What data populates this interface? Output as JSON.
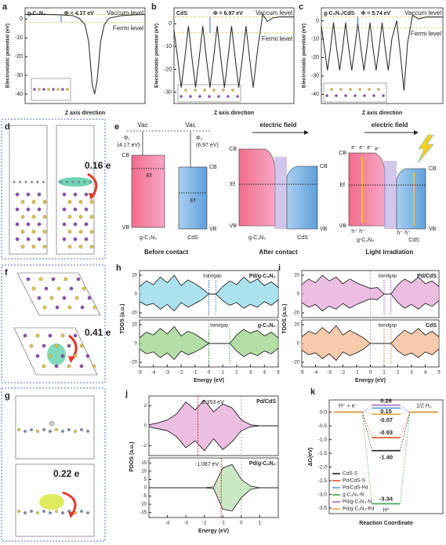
{
  "chart_data": [
    {
      "type": "line",
      "panel": "a",
      "title": "g-C₃N₄",
      "xlabel": "Z axis direction",
      "ylabel": "Electrostatic potential (eV)",
      "x": [
        0,
        0.1,
        0.2,
        0.3,
        0.4,
        0.45,
        0.5,
        0.53,
        0.56,
        0.58,
        0.6,
        0.63,
        0.66,
        0.7,
        0.8,
        0.9,
        1
      ],
      "series": [
        {
          "color": "#333333",
          "values": [
            2.5,
            2.5,
            2.4,
            2.3,
            1.8,
            0.5,
            -3,
            -12,
            -35,
            -40,
            -33,
            -12,
            -3,
            0.5,
            1.8,
            2.3,
            2.5
          ]
        }
      ],
      "xlim": [
        0,
        1
      ],
      "ylim": [
        -45,
        6
      ],
      "yticks": [
        0,
        -10,
        -20,
        -30,
        -40
      ],
      "vacuum_level": 2.5,
      "fermi_level": -1.67,
      "level_color": "#e8c860",
      "annotations": [
        "Φ = 4.17 eV",
        "Vaccum level",
        "Fermi level"
      ]
    },
    {
      "type": "line",
      "panel": "b",
      "title": "CdS",
      "xlabel": "Z axis direction",
      "ylabel": "Electrostatic potential (eV)",
      "x": [
        0,
        0.03,
        0.06,
        0.09,
        0.12,
        0.15,
        0.18,
        0.21,
        0.24,
        0.27,
        0.3,
        0.33,
        0.36,
        0.39,
        0.42,
        0.45,
        0.48,
        0.51,
        0.54,
        0.57,
        0.6,
        0.63,
        0.66,
        0.7,
        0.74,
        0.78,
        0.82,
        0.88,
        1
      ],
      "series": [
        {
          "color": "#333333",
          "values": [
            -3,
            -15,
            -28,
            -15,
            -1,
            -15,
            -28,
            -15,
            -1,
            -15,
            -28,
            -15,
            -1,
            -15,
            -28,
            -15,
            -1,
            -15,
            -28,
            -15,
            -1,
            -15,
            -28,
            -10,
            4,
            1,
            2.5,
            3,
            3
          ]
        }
      ],
      "xlim": [
        0,
        1
      ],
      "ylim": [
        -35,
        7
      ],
      "yticks": [
        0,
        -10,
        -20,
        -30
      ],
      "vacuum_level": 3,
      "fermi_level": -3.97,
      "level_color": "#e8c860",
      "annotations": [
        "Φ = 6.97 eV",
        "Vaccum level",
        "Fermi level"
      ]
    },
    {
      "type": "line",
      "panel": "c",
      "title": "g-C₃N₄/CdS",
      "xlabel": "Z axis direction",
      "ylabel": "Electrostatic potential (eV)",
      "x": [
        0,
        0.025,
        0.05,
        0.075,
        0.1,
        0.125,
        0.15,
        0.175,
        0.2,
        0.225,
        0.25,
        0.275,
        0.3,
        0.325,
        0.35,
        0.375,
        0.4,
        0.425,
        0.45,
        0.475,
        0.5,
        0.525,
        0.55,
        0.58,
        0.62,
        0.65,
        0.68,
        0.71,
        0.75,
        0.8,
        0.86,
        1
      ],
      "series": [
        {
          "color": "#333333",
          "values": [
            -3,
            -15,
            -27,
            -15,
            -1,
            -15,
            -27,
            -15,
            -1,
            -15,
            -27,
            -15,
            -1,
            -15,
            -27,
            -15,
            -1,
            -15,
            -27,
            -15,
            -1,
            -15,
            -27,
            -10,
            0,
            -18,
            -38,
            -12,
            3,
            1,
            2,
            2
          ]
        }
      ],
      "xlim": [
        0,
        1
      ],
      "ylim": [
        -45,
        7
      ],
      "yticks": [
        0,
        -10,
        -20,
        -30,
        -40
      ],
      "vacuum_level": 2,
      "fermi_level": -3.74,
      "level_color": "#e8c860",
      "annotations": [
        "Φ = 5.74 eV",
        "Vaccum level",
        "Fermi level"
      ]
    },
    {
      "type": "dos",
      "panel": "h",
      "xlabel": "Energy (eV)",
      "ylabel": "TDOS (a.u.)",
      "x": [
        -5,
        -4.5,
        -4,
        -3.5,
        -3,
        -2.5,
        -2,
        -1.5,
        -1,
        -0.5,
        0,
        0.5,
        1,
        1.5,
        2,
        2.5,
        3,
        3.5,
        4,
        4.5,
        5
      ],
      "xlim": [
        -5,
        5
      ],
      "xticks": [
        -5,
        -4,
        -3,
        -2,
        -1,
        0,
        1,
        2,
        3,
        4,
        5
      ],
      "subplots": [
        {
          "title": "Pd/g-C₃N₄",
          "annotation": "bandgap",
          "gap": [
            0,
            0.5
          ],
          "color": "#8fd8e8",
          "gap_color": "#3a7bd5",
          "ylim": [
            -25,
            25
          ],
          "yticks": [
            -20,
            0,
            20
          ],
          "series": [
            {
              "values": [
                8,
                14,
                10,
                18,
                12,
                20,
                9,
                15,
                11,
                6,
                0,
                0,
                8,
                14,
                10,
                18,
                12,
                16,
                9,
                13,
                7
              ]
            },
            {
              "values": [
                -8,
                -12,
                -10,
                -16,
                -11,
                -18,
                -9,
                -14,
                -10,
                -6,
                0,
                0,
                -7,
                -12,
                -9,
                -15,
                -11,
                -14,
                -8,
                -12,
                -6
              ]
            }
          ]
        },
        {
          "title": "g-C₃N₄",
          "annotation": "bandgap",
          "gap": [
            0,
            1.5
          ],
          "color": "#9ad48a",
          "gap_color": "#2e9e3e",
          "ylim": [
            -25,
            25
          ],
          "yticks": [
            -20,
            0,
            20
          ],
          "series": [
            {
              "values": [
                6,
                12,
                9,
                16,
                10,
                18,
                8,
                13,
                10,
                5,
                0,
                0,
                0,
                0,
                9,
                15,
                11,
                14,
                8,
                12,
                6
              ]
            },
            {
              "values": [
                -6,
                -11,
                -9,
                -15,
                -10,
                -17,
                -8,
                -12,
                -9,
                -5,
                0,
                0,
                0,
                0,
                -8,
                -14,
                -10,
                -13,
                -8,
                -11,
                -5
              ]
            }
          ]
        }
      ]
    },
    {
      "type": "dos",
      "panel": "i",
      "xlabel": "Energy (eV)",
      "ylabel": "TDOS (a.u.)",
      "x": [
        -5,
        -4.5,
        -4,
        -3.5,
        -3,
        -2.5,
        -2,
        -1.5,
        -1,
        -0.5,
        0,
        0.5,
        1,
        1.5,
        2,
        2.5,
        3,
        3.5,
        4,
        4.5,
        5
      ],
      "xlim": [
        -5,
        5
      ],
      "xticks": [
        -5,
        -4,
        -3,
        -2,
        -1,
        0,
        1,
        2,
        3,
        4,
        5
      ],
      "subplots": [
        {
          "title": "Pd/CdS",
          "annotation": "bandgap",
          "gap": [
            1,
            1.5
          ],
          "color": "#e4a8d8",
          "gap_color": "#9b3fc0",
          "ylim": [
            -25,
            25
          ],
          "yticks": [
            -20,
            0,
            20
          ],
          "series": [
            {
              "values": [
                10,
                16,
                12,
                20,
                14,
                18,
                11,
                16,
                12,
                9,
                6,
                7,
                0,
                0,
                10,
                16,
                12,
                18,
                11,
                14,
                8
              ]
            },
            {
              "values": [
                -9,
                -14,
                -11,
                -18,
                -13,
                -16,
                -10,
                -15,
                -11,
                -8,
                -5,
                -6,
                0,
                0,
                -9,
                -15,
                -11,
                -16,
                -10,
                -13,
                -7
              ]
            }
          ]
        },
        {
          "title": "CdS",
          "annotation": "bandgap",
          "gap": [
            1,
            1.5
          ],
          "color": "#f4b890",
          "gap_color": "#e07020",
          "ylim": [
            -25,
            25
          ],
          "yticks": [
            -20,
            0,
            20
          ],
          "series": [
            {
              "values": [
                7,
                13,
                10,
                17,
                11,
                19,
                9,
                14,
                10,
                6,
                0,
                0,
                0,
                0,
                8,
                14,
                10,
                16,
                9,
                13,
                7
              ]
            },
            {
              "values": [
                -7,
                -12,
                -10,
                -16,
                -11,
                -18,
                -9,
                -13,
                -10,
                -6,
                0,
                0,
                0,
                0,
                -8,
                -13,
                -10,
                -15,
                -9,
                -12,
                -6
              ]
            }
          ]
        }
      ]
    },
    {
      "type": "dos",
      "panel": "j",
      "xlabel": "Energy (eV)",
      "ylabel": "PDOS (a.u.)",
      "x": [
        -5,
        -4.5,
        -4,
        -3.5,
        -3,
        -2.5,
        -2,
        -1.5,
        -1,
        -0.5,
        0,
        0.5,
        1,
        1.5,
        2
      ],
      "xlim": [
        -5,
        2
      ],
      "xticks": [
        -4,
        -3,
        -2,
        -1,
        0,
        1
      ],
      "subplots": [
        {
          "title": "Pd/CdS",
          "color": "#e4a8d8",
          "ylim": [
            -3,
            3
          ],
          "yticks": [
            -2,
            0,
            2
          ],
          "markers": [
            {
              "value": -2.353,
              "label": "-2.353 eV",
              "color": "#d03030"
            }
          ],
          "series": [
            {
              "values": [
                0.1,
                0.3,
                0.6,
                1.2,
                2.4,
                1.6,
                2.6,
                1.4,
                2.2,
                1.8,
                0.6,
                0.1,
                0,
                0,
                0
              ]
            },
            {
              "values": [
                -0.1,
                -0.3,
                -0.5,
                -1.1,
                -2.2,
                -1.5,
                -2.5,
                -1.3,
                -2.4,
                -1.6,
                -0.5,
                -0.1,
                0,
                0,
                0
              ]
            }
          ]
        },
        {
          "title": "Pd/g-C₃N₄",
          "color": "#b8e0b0",
          "ylim": [
            -18,
            18
          ],
          "yticks": [
            -15,
            -10,
            -5,
            0,
            5,
            10,
            15
          ],
          "markers": [
            {
              "value": -1.087,
              "label": "-1.087 eV",
              "color": "#d03030"
            }
          ],
          "series": [
            {
              "values": [
                0,
                0,
                0,
                0,
                0,
                0,
                0,
                0.5,
                12,
                14,
                5,
                1,
                0,
                0,
                0
              ]
            },
            {
              "values": [
                0,
                0,
                0,
                0,
                0,
                0,
                0,
                -0.5,
                -13,
                -14,
                -6,
                -1,
                0,
                0,
                0
              ]
            }
          ]
        }
      ]
    },
    {
      "type": "levels",
      "panel": "k",
      "xlabel": "Reaction Coordinate",
      "ylabel": "ΔG(eV)",
      "categories": [
        "H⁺ + e⁻",
        "H*",
        "1/2 H₂"
      ],
      "ylim": [
        -3.7,
        0.45
      ],
      "yticks": [
        {
          "value": 0,
          "label": "0.0"
        },
        -0.5,
        {
          "value": -1,
          "label": "-1.0"
        },
        -1.5,
        {
          "value": -2,
          "label": "-2.0"
        },
        -2.5,
        {
          "value": -3,
          "label": "-3.0"
        },
        -3.5
      ],
      "series": [
        {
          "name": "CdS-S",
          "color": "#222222",
          "values": [
            0,
            -1.4,
            0
          ],
          "value_label": "-1.40"
        },
        {
          "name": "Pd/CdS-S",
          "color": "#e0502e",
          "values": [
            0,
            -0.93,
            0
          ],
          "value_label": "-0.93"
        },
        {
          "name": "Pd/CdS-Pd",
          "color": "#5b9bd5",
          "values": [
            0,
            0.15,
            0
          ],
          "value_label": "0.15"
        },
        {
          "name": "g-C₃N₄-N",
          "color": "#3aa64a",
          "values": [
            0,
            -3.34,
            0
          ],
          "value_label": "-3.34"
        },
        {
          "name": "Pd/g-C₃N₄-N",
          "color": "#a66cc4",
          "values": [
            0,
            0.26,
            0
          ],
          "value_label": "0.26"
        },
        {
          "name": "Pd/g-C₃N₄-Pd",
          "color": "#e8a33a",
          "values": [
            0,
            -0.07,
            0
          ],
          "value_label": "-0.07"
        }
      ],
      "legend": "lower left"
    }
  ],
  "panels": {
    "d": {
      "label": "d",
      "charge": "0.16 e"
    },
    "f": {
      "label": "f",
      "charge": "0.41 e"
    },
    "g": {
      "label": "g",
      "charge": "0.22 e"
    },
    "e": {
      "label": "e",
      "vac": "Vac",
      "phi1": "Φ₁",
      "phi1_value": "(4.17 eV)",
      "phi2": "Φ₂",
      "phi2_value": "(6.97 eV)",
      "cb": "CB",
      "vb": "VB",
      "ef": "Ef",
      "material1": "g-C₃N₄",
      "material2": "CdS",
      "before": "Before contact",
      "after": "After contact",
      "light": "Light irradiation",
      "field": "electric field",
      "electron": "e⁻",
      "hole": "h⁺"
    }
  }
}
